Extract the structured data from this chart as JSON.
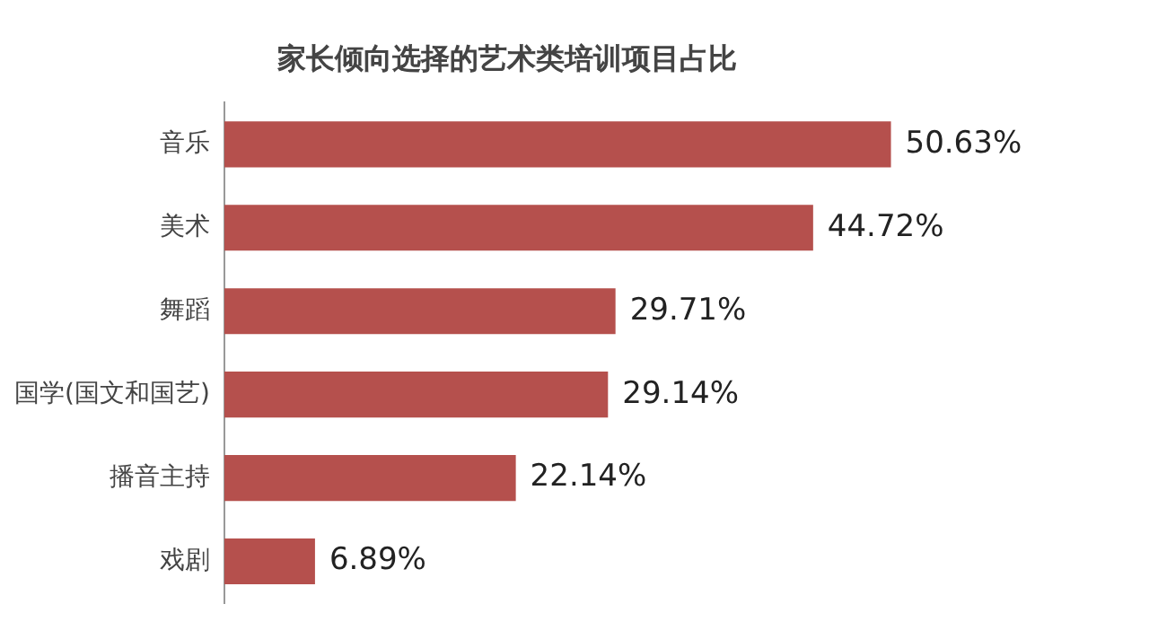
{
  "chart_data": {
    "type": "bar",
    "orientation": "horizontal",
    "title": "家长倾向选择的艺术类培训项目占比",
    "categories": [
      "音乐",
      "美术",
      "舞蹈",
      "国学(国文和国艺)",
      "播音主持",
      "戏剧"
    ],
    "values": [
      50.63,
      44.72,
      29.71,
      29.14,
      22.14,
      6.89
    ],
    "value_labels": [
      "50.63%",
      "44.72%",
      "29.71%",
      "29.14%",
      "22.14%",
      "6.89%"
    ],
    "color": "#b5504d",
    "tick_labels": "y"
  }
}
